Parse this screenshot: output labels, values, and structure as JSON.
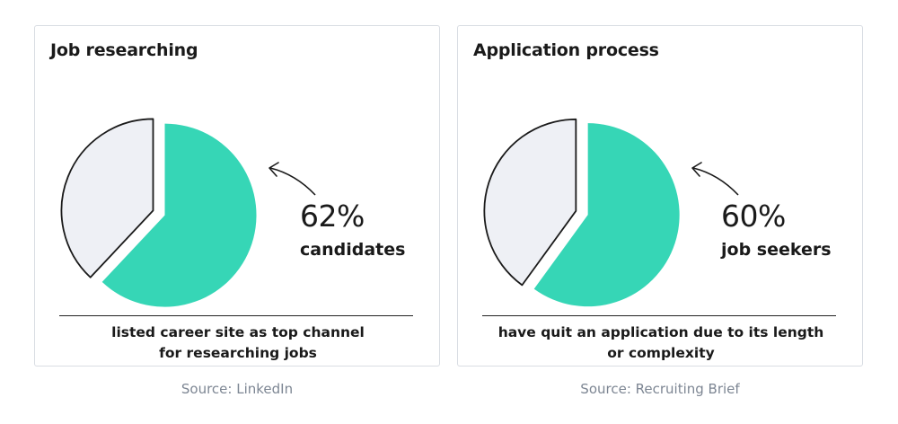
{
  "colors": {
    "primary_slice": "#36d6b6",
    "remainder_slice": "#eef0f5",
    "outline": "#1a1a1a",
    "source_text": "#7d8693"
  },
  "chart_data": [
    {
      "type": "pie",
      "title": "Job researching",
      "slices": [
        {
          "label": "",
          "value": 62,
          "color": "#36d6b6"
        },
        {
          "label": "",
          "value": 38,
          "color": "#eef0f5"
        }
      ],
      "highlight": {
        "value_text": "62%",
        "label": "candidates"
      },
      "description_lines": [
        "listed career site as top channel",
        "for researching jobs"
      ],
      "source": "Source: LinkedIn"
    },
    {
      "type": "pie",
      "title": "Application process",
      "slices": [
        {
          "label": "",
          "value": 60,
          "color": "#36d6b6"
        },
        {
          "label": "",
          "value": 40,
          "color": "#eef0f5"
        }
      ],
      "highlight": {
        "value_text": "60%",
        "label": "job seekers"
      },
      "description_lines": [
        "have quit an application due to its length",
        "or complexity"
      ],
      "source": "Source: Recruiting Brief"
    }
  ]
}
